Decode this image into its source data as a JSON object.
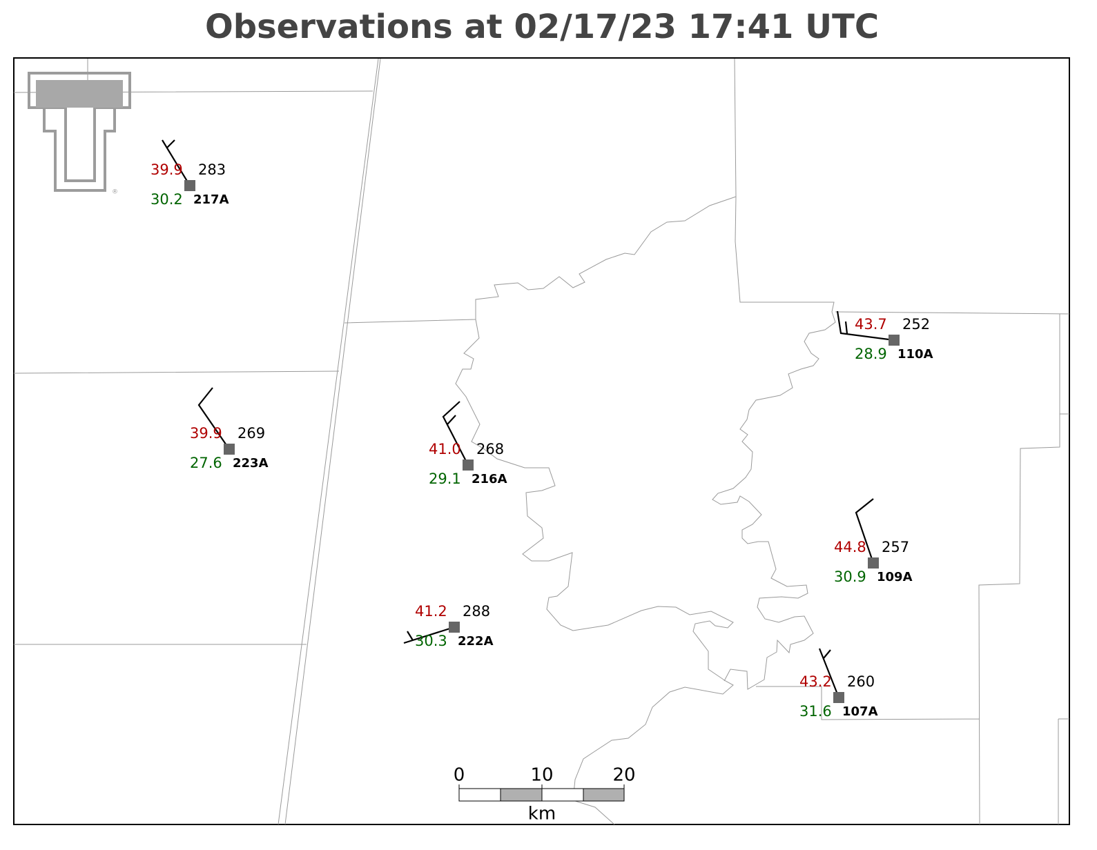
{
  "title": "Observations at 02/17/23 17:41 UTC",
  "stations": [
    {
      "id": "217A",
      "temperature": "39.9",
      "dewpoint": "30.2",
      "value": "283"
    },
    {
      "id": "223A",
      "temperature": "39.9",
      "dewpoint": "27.6",
      "value": "269"
    },
    {
      "id": "216A",
      "temperature": "41.0",
      "dewpoint": "29.1",
      "value": "268"
    },
    {
      "id": "222A",
      "temperature": "41.2",
      "dewpoint": "30.3",
      "value": "288"
    },
    {
      "id": "110A",
      "temperature": "43.7",
      "dewpoint": "28.9",
      "value": "252"
    },
    {
      "id": "109A",
      "temperature": "44.8",
      "dewpoint": "30.9",
      "value": "257"
    },
    {
      "id": "107A",
      "temperature": "43.2",
      "dewpoint": "31.6",
      "value": "260"
    }
  ],
  "scale_bar": {
    "ticks": [
      "0",
      "10",
      "20"
    ],
    "unit": "km"
  }
}
